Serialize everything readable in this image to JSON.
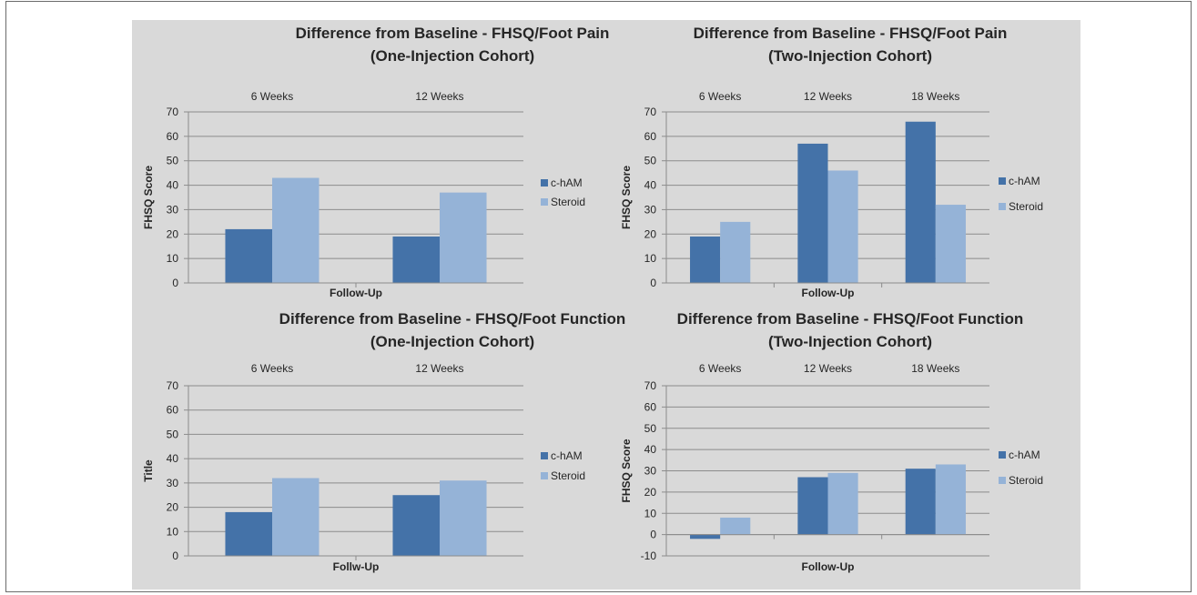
{
  "colors": {
    "c_ham": "#4472a8",
    "steroid": "#95b3d7"
  },
  "chart_data": [
    {
      "type": "bar",
      "title_line1": "Difference from Baseline - FHSQ/Foot Pain",
      "title_line2": "(One-Injection Cohort)",
      "categories": [
        "6 Weeks",
        "12 Weeks"
      ],
      "series": [
        {
          "name": "c-hAM",
          "values": [
            22,
            19
          ]
        },
        {
          "name": "Steroid",
          "values": [
            43,
            37
          ]
        }
      ],
      "xlabel": "Follow-Up",
      "ylabel": "FHSQ Score",
      "ylim": [
        0,
        70
      ],
      "yticks": [
        "0",
        "10",
        "20",
        "30",
        "40",
        "50",
        "60",
        "70"
      ],
      "grid": true,
      "legend": "right",
      "category_labels_position": "top"
    },
    {
      "type": "bar",
      "title_line1": "Difference from Baseline - FHSQ/Foot Pain",
      "title_line2": "(Two-Injection Cohort)",
      "categories": [
        "6 Weeks",
        "12 Weeks",
        "18 Weeks"
      ],
      "series": [
        {
          "name": "c-hAM",
          "values": [
            19,
            57,
            66
          ]
        },
        {
          "name": "Steroid",
          "values": [
            25,
            46,
            32
          ]
        }
      ],
      "xlabel": "Follow-Up",
      "ylabel": "FHSQ Score",
      "ylim": [
        0,
        70
      ],
      "yticks": [
        "0",
        "10",
        "20",
        "30",
        "40",
        "50",
        "60",
        "70"
      ],
      "grid": true,
      "legend": "right",
      "category_labels_position": "top"
    },
    {
      "type": "bar",
      "title_line1": "Difference from Baseline - FHSQ/Foot Function",
      "title_line2": "(One-Injection Cohort)",
      "categories": [
        "6 Weeks",
        "12 Weeks"
      ],
      "series": [
        {
          "name": "c-hAM",
          "values": [
            18,
            25
          ]
        },
        {
          "name": "Steroid",
          "values": [
            32,
            31
          ]
        }
      ],
      "xlabel": "Follw-Up",
      "ylabel": "Title",
      "ylim": [
        0,
        70
      ],
      "yticks": [
        "0",
        "10",
        "20",
        "30",
        "40",
        "50",
        "60",
        "70"
      ],
      "grid": true,
      "legend": "right",
      "category_labels_position": "top"
    },
    {
      "type": "bar",
      "title_line1": "Difference from Baseline - FHSQ/Foot Function",
      "title_line2": "(Two-Injection Cohort)",
      "categories": [
        "6 Weeks",
        "12 Weeks",
        "18 Weeks"
      ],
      "series": [
        {
          "name": "c-hAM",
          "values": [
            -2,
            27,
            31
          ]
        },
        {
          "name": "Steroid",
          "values": [
            8,
            29,
            33
          ]
        }
      ],
      "xlabel": "Follow-Up",
      "ylabel": "FHSQ Score",
      "ylim": [
        -10,
        70
      ],
      "yticks": [
        "-10",
        "0",
        "10",
        "20",
        "30",
        "40",
        "50",
        "60",
        "70"
      ],
      "grid": true,
      "legend": "right",
      "category_labels_position": "top"
    }
  ]
}
